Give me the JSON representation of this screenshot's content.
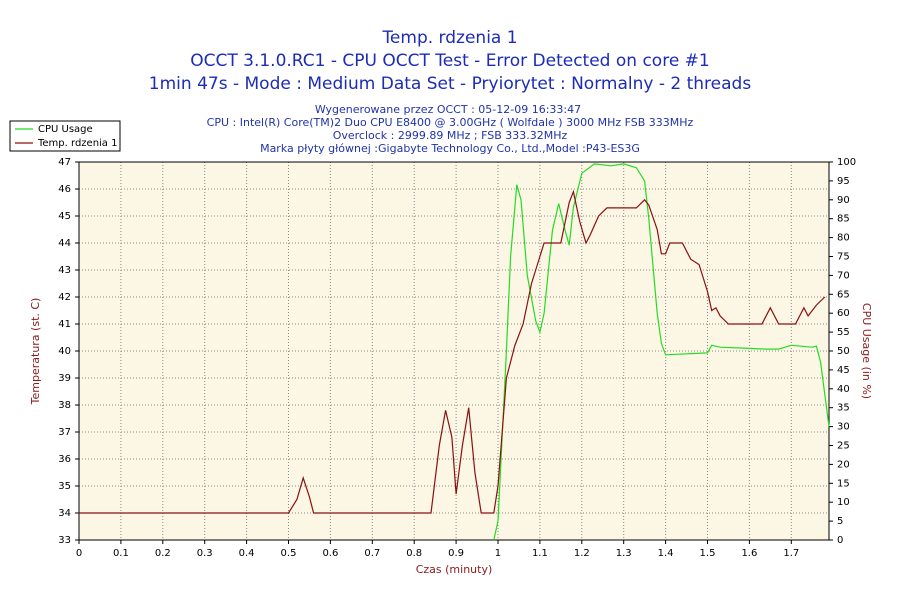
{
  "chart_data": {
    "type": "line",
    "title": "Temp. rdzenia 1",
    "subtitle": [
      "OCCT 3.1.0.RC1 - CPU OCCT Test - Error Detected on core #1",
      "1min 47s - Mode : Medium Data Set - Pryiorytet : Normalny - 2 threads"
    ],
    "info": [
      "Wygenerowane przez OCCT : 05-12-09 16:33:47",
      "CPU : Intel(R) Core(TM)2 Duo CPU E8400 @ 3.00GHz ( Wolfdale ) 3000 MHz FSB 333MHz",
      "Overclock : 2999.89 MHz ; FSB 333.32MHz",
      "Marka płyty głównej :Gigabyte Technology Co., Ltd.,Model :P43-ES3G"
    ],
    "xlabel": "Czas (minuty)",
    "ylabel": "Temperatura (st. C)",
    "y2label": "CPU Usage (in %)",
    "xlim": [
      0,
      1.79
    ],
    "xticks": [
      0,
      0.1,
      0.2,
      0.3,
      0.4,
      0.5,
      0.6,
      0.7,
      0.8,
      0.9,
      1,
      1.1,
      1.2,
      1.3,
      1.4,
      1.5,
      1.6,
      1.7
    ],
    "ylim": [
      33,
      47
    ],
    "yticks": [
      33,
      34,
      35,
      36,
      37,
      38,
      39,
      40,
      41,
      42,
      43,
      44,
      45,
      46,
      47
    ],
    "y2lim": [
      0,
      100
    ],
    "y2ticks": [
      0,
      5,
      10,
      15,
      20,
      25,
      30,
      35,
      40,
      45,
      50,
      55,
      60,
      65,
      70,
      75,
      80,
      85,
      90,
      95,
      100
    ],
    "grid": true,
    "series": [
      {
        "name": "CPU Usage",
        "color": "#22dd22",
        "axis": "y2",
        "x": [
          0.99,
          1.0,
          1.02,
          1.03,
          1.045,
          1.055,
          1.07,
          1.09,
          1.1,
          1.11,
          1.13,
          1.145,
          1.16,
          1.17,
          1.18,
          1.2,
          1.23,
          1.27,
          1.3,
          1.33,
          1.35,
          1.36,
          1.38,
          1.39,
          1.4,
          1.5,
          1.51,
          1.53,
          1.6,
          1.64,
          1.67,
          1.7,
          1.75,
          1.76,
          1.77,
          1.79
        ],
        "values": [
          0,
          5,
          50,
          75,
          94,
          90,
          70,
          58,
          55,
          60,
          82,
          89,
          82,
          78,
          88,
          97,
          99.5,
          99,
          99.5,
          98.5,
          95,
          85,
          60,
          52,
          49,
          49.5,
          51.5,
          51,
          50.7,
          50.5,
          50.5,
          51.5,
          51,
          51.3,
          47,
          30
        ]
      },
      {
        "name": "Temp. rdzenia 1",
        "color": "#8b1010",
        "axis": "y",
        "x": [
          0,
          0.5,
          0.52,
          0.535,
          0.55,
          0.56,
          0.84,
          0.86,
          0.875,
          0.89,
          0.9,
          0.915,
          0.93,
          0.945,
          0.96,
          0.99,
          1.0,
          1.01,
          1.02,
          1.04,
          1.06,
          1.08,
          1.1,
          1.11,
          1.15,
          1.17,
          1.18,
          1.195,
          1.21,
          1.22,
          1.24,
          1.26,
          1.33,
          1.35,
          1.36,
          1.38,
          1.39,
          1.4,
          1.41,
          1.44,
          1.46,
          1.48,
          1.5,
          1.51,
          1.52,
          1.53,
          1.55,
          1.63,
          1.65,
          1.67,
          1.71,
          1.73,
          1.74,
          1.76,
          1.78
        ],
        "values": [
          34,
          34,
          34.5,
          35.3,
          34.6,
          34,
          34,
          36.5,
          37.8,
          36.8,
          34.7,
          36.5,
          37.9,
          35.5,
          34,
          34,
          35,
          37,
          39,
          40.2,
          41,
          42.5,
          43.5,
          44,
          44,
          45.5,
          45.9,
          44.8,
          44,
          44.3,
          45,
          45.3,
          45.3,
          45.6,
          45.4,
          44.5,
          43.6,
          43.6,
          44,
          44,
          43.4,
          43.2,
          42.2,
          41.5,
          41.6,
          41.3,
          41,
          41,
          41.6,
          41,
          41,
          41.6,
          41.3,
          41.7,
          42
        ]
      }
    ]
  }
}
